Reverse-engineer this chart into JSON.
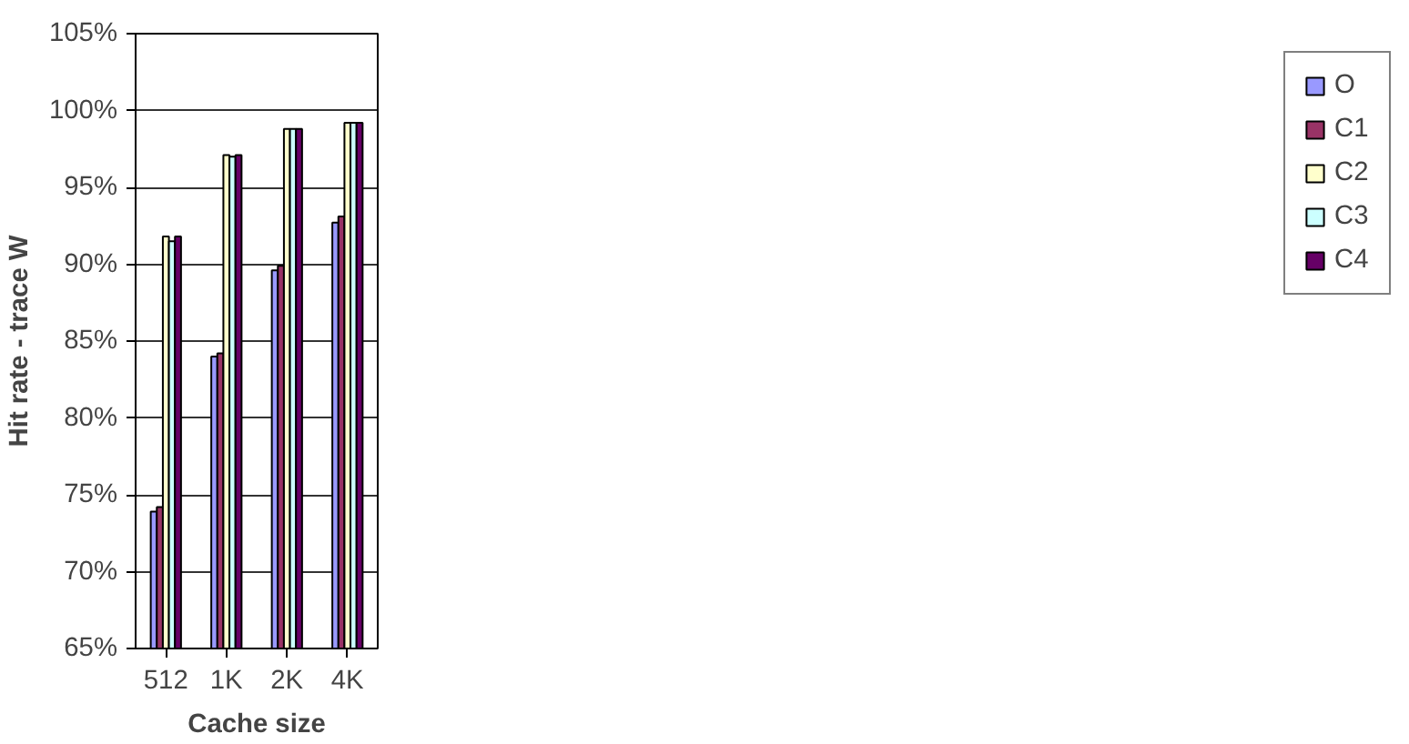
{
  "chart_data": {
    "type": "bar",
    "xlabel": "Cache size",
    "ylabel": "Hit rate - trace W",
    "categories": [
      "512",
      "1K",
      "2K",
      "4K"
    ],
    "series": [
      {
        "name": "O",
        "color": "#9999ff",
        "values": [
          73.9,
          84.0,
          89.6,
          92.7
        ]
      },
      {
        "name": "C1",
        "color": "#993366",
        "values": [
          74.2,
          84.2,
          89.9,
          93.1
        ]
      },
      {
        "name": "C2",
        "color": "#ffffcc",
        "values": [
          91.8,
          97.1,
          98.8,
          99.2
        ]
      },
      {
        "name": "C3",
        "color": "#ccffff",
        "values": [
          91.5,
          97.0,
          98.8,
          99.2
        ]
      },
      {
        "name": "C4",
        "color": "#660066",
        "values": [
          91.8,
          97.1,
          98.8,
          99.2
        ]
      }
    ],
    "ylim": [
      65,
      105
    ],
    "yticks": [
      {
        "value": 65,
        "label": "65%"
      },
      {
        "value": 70,
        "label": "70%"
      },
      {
        "value": 75,
        "label": "75%"
      },
      {
        "value": 80,
        "label": "80%"
      },
      {
        "value": 85,
        "label": "85%"
      },
      {
        "value": 90,
        "label": "90%"
      },
      {
        "value": 95,
        "label": "95%"
      },
      {
        "value": 100,
        "label": "100%"
      },
      {
        "value": 105,
        "label": "105%"
      }
    ],
    "grid": "y",
    "legend": "right"
  }
}
